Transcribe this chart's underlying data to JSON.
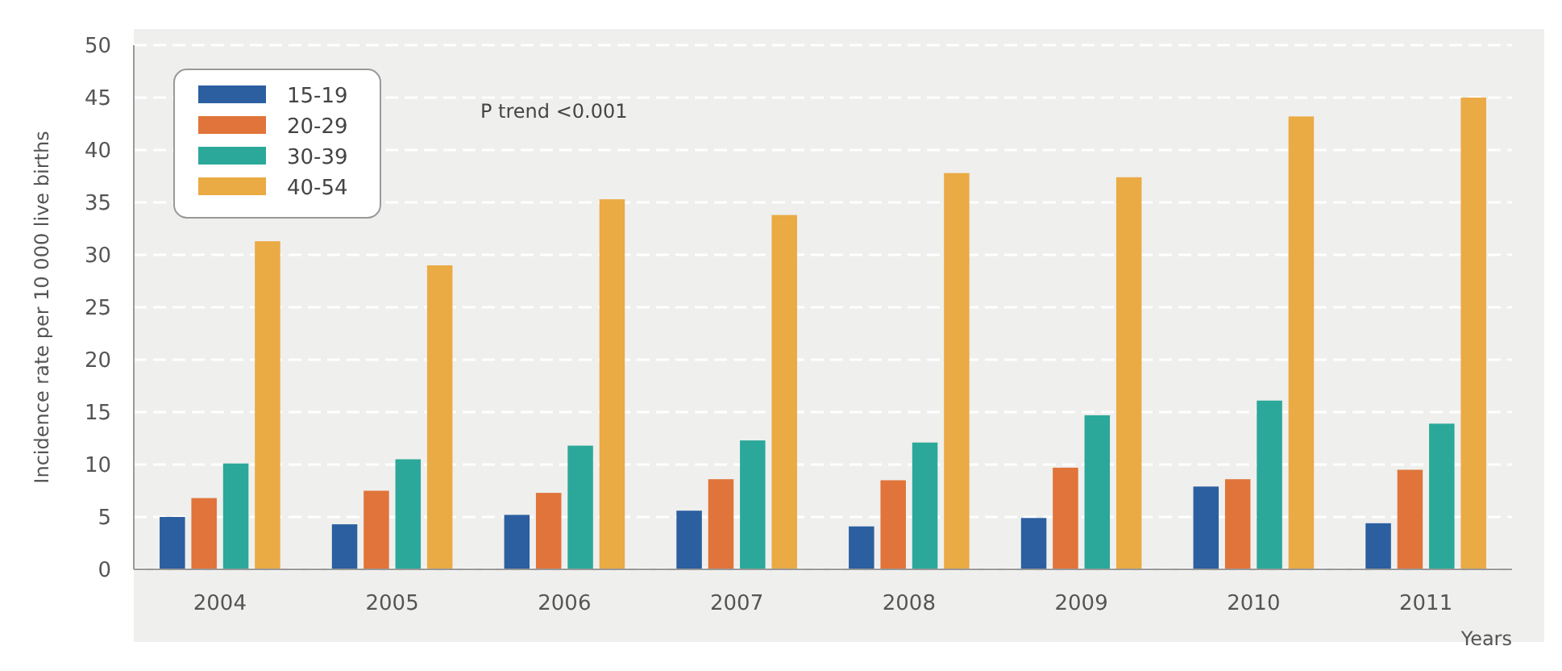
{
  "chart_data": {
    "type": "bar",
    "xlabel": "Years",
    "ylabel": "Incidence rate per 10 000 live births",
    "categories": [
      "2004",
      "2005",
      "2006",
      "2007",
      "2008",
      "2009",
      "2010",
      "2011"
    ],
    "series": [
      {
        "name": "15-19",
        "color": "#2b5fa0",
        "values": [
          5.0,
          4.3,
          5.2,
          5.6,
          4.1,
          4.9,
          7.9,
          4.4
        ]
      },
      {
        "name": "20-29",
        "color": "#e0743a",
        "values": [
          6.8,
          7.5,
          7.3,
          8.6,
          8.5,
          9.7,
          8.6,
          9.5
        ]
      },
      {
        "name": "30-39",
        "color": "#2ba89a",
        "values": [
          10.1,
          10.5,
          11.8,
          12.3,
          12.1,
          14.7,
          16.1,
          13.9
        ]
      },
      {
        "name": "40-54",
        "color": "#eaaa44",
        "values": [
          31.3,
          29.0,
          35.3,
          33.8,
          37.8,
          37.4,
          43.2,
          45.0
        ]
      }
    ],
    "ylim": [
      0,
      50
    ],
    "yticks": [
      0,
      5,
      10,
      15,
      20,
      25,
      30,
      35,
      40,
      45,
      50
    ],
    "grid": "y",
    "legend": "top left",
    "annotations": [
      "P trend <0.001"
    ]
  }
}
